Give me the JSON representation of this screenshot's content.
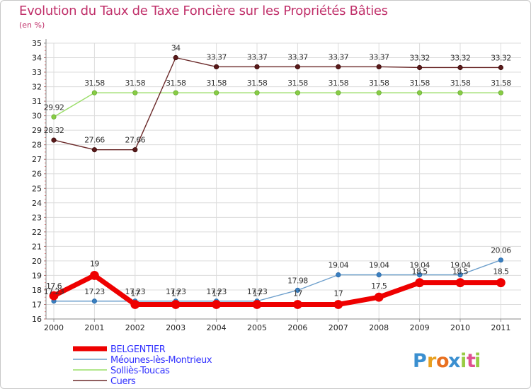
{
  "chart_data": {
    "type": "line",
    "title": "Evolution du Taux de Taxe Foncière sur les Propriétés Bâties",
    "ylabel": "(en %)",
    "xlabel": "",
    "ylim": [
      16,
      35
    ],
    "yticks": [
      16,
      17,
      18,
      19,
      20,
      21,
      22,
      23,
      24,
      25,
      26,
      27,
      28,
      29,
      30,
      31,
      32,
      33,
      34,
      35
    ],
    "categories": [
      "2000",
      "2001",
      "2002",
      "2003",
      "2004",
      "2005",
      "2006",
      "2007",
      "2008",
      "2009",
      "2010",
      "2011"
    ],
    "grid": true,
    "legend_position": "bottom-left",
    "series": [
      {
        "name": "BELGENTIER",
        "color": "#ee0000",
        "values": [
          17.6,
          19,
          17,
          17,
          17,
          17,
          17,
          17,
          17.5,
          18.5,
          18.5,
          18.5
        ],
        "labels": [
          "17.6",
          "19",
          "17",
          "17",
          "17",
          "17",
          "17",
          "17",
          "17.5",
          "18.5",
          "18.5",
          "18.5"
        ]
      },
      {
        "name": "Méounes-lès-Montrieux",
        "color": "#6d9fcc",
        "values": [
          17.23,
          17.23,
          17.23,
          17.23,
          17.23,
          17.23,
          17.98,
          19.04,
          19.04,
          19.04,
          19.04,
          20.06
        ],
        "labels": [
          "17.23",
          "17.23",
          "17.23",
          "17.23",
          "17.23",
          "17.23",
          "17.98",
          "19.04",
          "19.04",
          "19.04",
          "19.04",
          "20.06"
        ]
      },
      {
        "name": "Solliès-Toucas",
        "color": "#99dd66",
        "values": [
          29.92,
          31.58,
          31.58,
          31.58,
          31.58,
          31.58,
          31.58,
          31.58,
          31.58,
          31.58,
          31.58,
          31.58
        ],
        "labels": [
          "29.92",
          "31.58",
          "31.58",
          "31.58",
          "31.58",
          "31.58",
          "31.58",
          "31.58",
          "31.58",
          "31.58",
          "31.58",
          "31.58"
        ]
      },
      {
        "name": "Cuers",
        "color": "#6b2a2a",
        "values": [
          28.32,
          27.66,
          27.66,
          34,
          33.37,
          33.37,
          33.37,
          33.37,
          33.37,
          33.32,
          33.32,
          33.32
        ],
        "labels": [
          "28.32",
          "27.66",
          "27.66",
          "34",
          "33.37",
          "33.37",
          "33.37",
          "33.37",
          "33.37",
          "33.32",
          "33.32",
          "33.32"
        ]
      }
    ]
  },
  "logo": {
    "letters": [
      "P",
      "r",
      "o",
      "x",
      "i",
      "t",
      "i"
    ],
    "colors": [
      "#3a8fd0",
      "#e8a020",
      "#e87020",
      "#3a8fd0",
      "#99cc44",
      "#e05090",
      "#99cc44"
    ]
  }
}
